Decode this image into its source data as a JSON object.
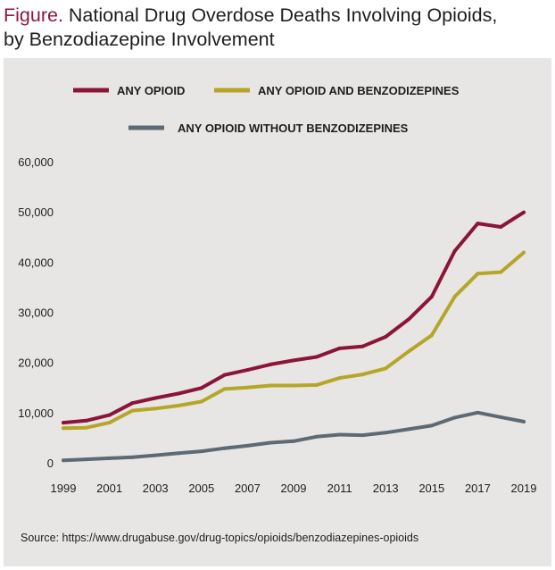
{
  "header": {
    "figure_label": "Figure.",
    "title_line1": "National Drug Overdose Deaths Involving Opioids,",
    "title_line2": "by Benzodiazepine Involvement"
  },
  "source": "Source: https://www.drugabuse.gov/drug-topics/opioids/benzodiazepines-opioids",
  "chart_data": {
    "type": "line",
    "title": "National Drug Overdose Deaths Involving Opioids, by Benzodiazepine Involvement",
    "xlabel": "",
    "ylabel": "",
    "ylim": [
      0,
      60000
    ],
    "xlim": [
      1999,
      2019
    ],
    "x": [
      1999,
      2000,
      2001,
      2002,
      2003,
      2004,
      2005,
      2006,
      2007,
      2008,
      2009,
      2010,
      2011,
      2012,
      2013,
      2014,
      2015,
      2016,
      2017,
      2018,
      2019
    ],
    "x_tick_labels": [
      "1999",
      "2001",
      "2003",
      "2005",
      "2007",
      "2009",
      "2011",
      "2013",
      "2015",
      "2017",
      "2019"
    ],
    "y_tick_labels": [
      "0",
      "10,000",
      "20,000",
      "30,000",
      "40,000",
      "50,000",
      "60,000"
    ],
    "y_ticks": [
      0,
      10000,
      20000,
      30000,
      40000,
      50000,
      60000
    ],
    "grid": false,
    "legend_position": "top",
    "series": [
      {
        "name": "ANY OPIOID",
        "color": "#8b1538",
        "values": [
          8000,
          8400,
          9500,
          11900,
          12900,
          13800,
          14900,
          17500,
          18500,
          19600,
          20400,
          21100,
          22800,
          23200,
          25100,
          28600,
          33100,
          42200,
          47700,
          47000,
          49900
        ]
      },
      {
        "name": "ANY OPIOID AND BENZODIZEPINES",
        "color": "#b5a629",
        "values": [
          6900,
          7000,
          8000,
          10400,
          10800,
          11400,
          12200,
          14700,
          15000,
          15400,
          15400,
          15500,
          16900,
          17600,
          18800,
          22200,
          25400,
          33100,
          37700,
          38000,
          41900
        ]
      },
      {
        "name": "ANY OPIOID WITHOUT BENZODIZEPINES",
        "color": "#5d6a75",
        "values": [
          500,
          700,
          900,
          1100,
          1500,
          1900,
          2300,
          2900,
          3400,
          4000,
          4300,
          5200,
          5600,
          5500,
          6000,
          6700,
          7400,
          9000,
          10000,
          9100,
          8200
        ]
      }
    ]
  }
}
